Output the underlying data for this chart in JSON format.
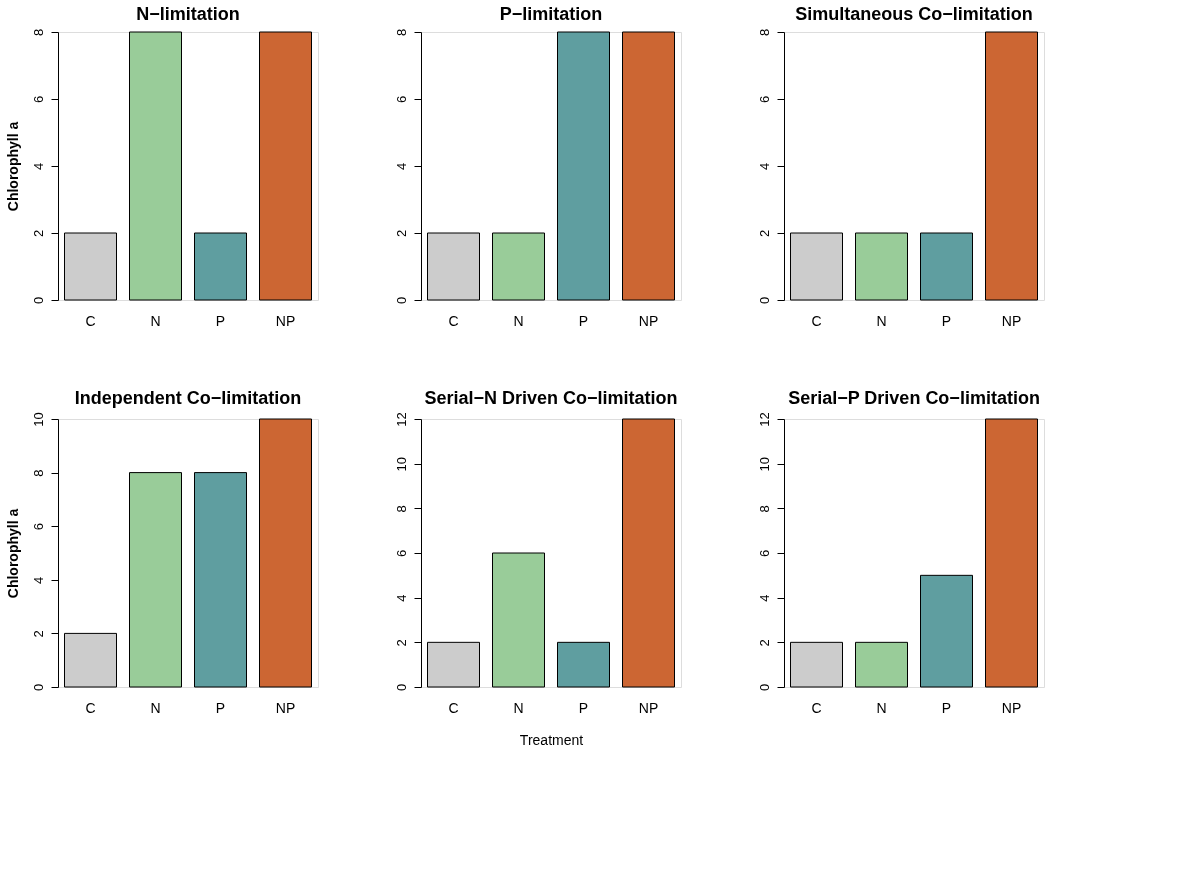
{
  "chart_data": [
    {
      "type": "bar",
      "title": "N−limitation",
      "ylabel": "Chlorophyll a",
      "categories": [
        "C",
        "N",
        "P",
        "NP"
      ],
      "values": [
        2,
        8,
        2,
        8
      ],
      "colors": [
        "#cccccc",
        "#99cc99",
        "#5f9ea0",
        "#cc6633"
      ],
      "ylim": [
        0,
        8
      ],
      "yticks": [
        0,
        2,
        4,
        6,
        8
      ]
    },
    {
      "type": "bar",
      "title": "P−limitation",
      "categories": [
        "C",
        "N",
        "P",
        "NP"
      ],
      "values": [
        2,
        2,
        8,
        8
      ],
      "colors": [
        "#cccccc",
        "#99cc99",
        "#5f9ea0",
        "#cc6633"
      ],
      "ylim": [
        0,
        8
      ],
      "yticks": [
        0,
        2,
        4,
        6,
        8
      ]
    },
    {
      "type": "bar",
      "title": "Simultaneous Co−limitation",
      "categories": [
        "C",
        "N",
        "P",
        "NP"
      ],
      "values": [
        2,
        2,
        2,
        8
      ],
      "colors": [
        "#cccccc",
        "#99cc99",
        "#5f9ea0",
        "#cc6633"
      ],
      "ylim": [
        0,
        8
      ],
      "yticks": [
        0,
        2,
        4,
        6,
        8
      ]
    },
    {
      "type": "bar",
      "title": "Independent Co−limitation",
      "ylabel": "Chlorophyll a",
      "categories": [
        "C",
        "N",
        "P",
        "NP"
      ],
      "values": [
        2,
        8,
        8,
        10
      ],
      "colors": [
        "#cccccc",
        "#99cc99",
        "#5f9ea0",
        "#cc6633"
      ],
      "ylim": [
        0,
        10
      ],
      "yticks": [
        0,
        2,
        4,
        6,
        8,
        10
      ]
    },
    {
      "type": "bar",
      "title": "Serial−N Driven Co−limitation",
      "xlabel": "Treatment",
      "categories": [
        "C",
        "N",
        "P",
        "NP"
      ],
      "values": [
        2,
        6,
        2,
        12
      ],
      "colors": [
        "#cccccc",
        "#99cc99",
        "#5f9ea0",
        "#cc6633"
      ],
      "ylim": [
        0,
        12
      ],
      "yticks": [
        0,
        2,
        4,
        6,
        8,
        10,
        12
      ]
    },
    {
      "type": "bar",
      "title": "Serial−P Driven Co−limitation",
      "categories": [
        "C",
        "N",
        "P",
        "NP"
      ],
      "values": [
        2,
        2,
        5,
        12
      ],
      "colors": [
        "#cccccc",
        "#99cc99",
        "#5f9ea0",
        "#cc6633"
      ],
      "ylim": [
        0,
        12
      ],
      "yticks": [
        0,
        2,
        4,
        6,
        8,
        10,
        12
      ]
    }
  ]
}
